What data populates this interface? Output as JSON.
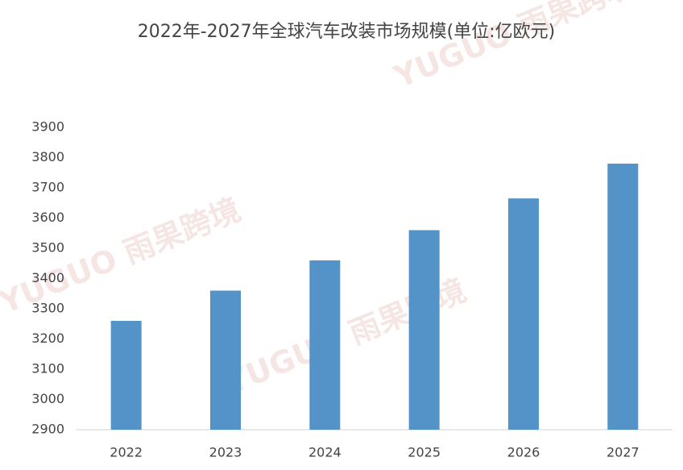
{
  "chart_data": {
    "type": "bar",
    "title": "2022年-2027年全球汽车改装市场规模(单位:亿欧元)",
    "categories": [
      "2022",
      "2023",
      "2024",
      "2025",
      "2026",
      "2027"
    ],
    "values": [
      3260,
      3360,
      3460,
      3560,
      3665,
      3780
    ],
    "color": "#5393c8",
    "ylim": [
      2900,
      3900
    ],
    "yticks": [
      2900,
      3000,
      3100,
      3200,
      3300,
      3400,
      3500,
      3600,
      3700,
      3800,
      3900
    ],
    "grid": false
  },
  "watermark": "YUGUO 雨果跨境"
}
